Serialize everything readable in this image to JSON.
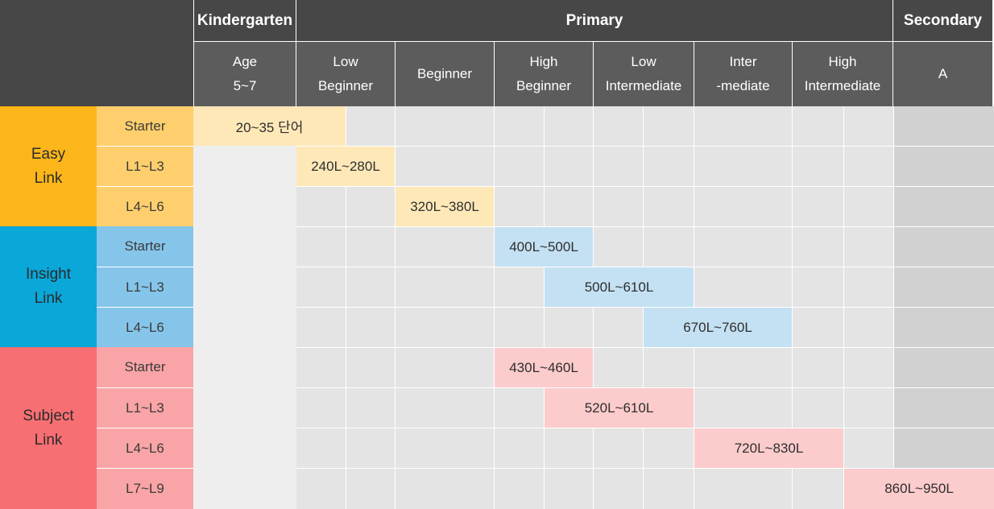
{
  "header": {
    "kindergarten": "Kindergarten",
    "primary": "Primary",
    "secondary": "Secondary",
    "columns": {
      "age_line1": "Age",
      "age_line2": "5~7",
      "low_beginner_line1": "Low",
      "low_beginner_line2": "Beginner",
      "beginner": "Beginner",
      "high_beginner_line1": "High",
      "high_beginner_line2": "Beginner",
      "low_intermediate_line1": "Low",
      "low_intermediate_line2": "Intermediate",
      "intermediate_line1": "Inter",
      "intermediate_line2": "-mediate",
      "high_intermediate_line1": "High",
      "high_intermediate_line2": "Intermediate",
      "secondary_a": "A"
    }
  },
  "programs": {
    "easy": {
      "line1": "Easy",
      "line2": "Link",
      "color": "#fdb61a",
      "level_color": "#ffcf6e",
      "range_color": "#ffe8b8"
    },
    "insight": {
      "line1": "Insight",
      "line2": "Link",
      "color": "#0aa7d9",
      "level_color": "#86c5ea",
      "range_color": "#c4e1f3"
    },
    "subject": {
      "line1": "Subject",
      "line2": "Link",
      "color": "#f86f73",
      "level_color": "#f9a4a6",
      "range_color": "#fccbcc"
    }
  },
  "rows": [
    {
      "level": "Starter",
      "range": "20~35 단어"
    },
    {
      "level": "L1~L3",
      "range": "240L~280L"
    },
    {
      "level": "L4~L6",
      "range": "320L~380L"
    },
    {
      "level": "Starter",
      "range": "400L~500L"
    },
    {
      "level": "L1~L3",
      "range": "500L~610L"
    },
    {
      "level": "L4~L6",
      "range": "670L~760L"
    },
    {
      "level": "Starter",
      "range": "430L~460L"
    },
    {
      "level": "L1~L3",
      "range": "520L~610L"
    },
    {
      "level": "L4~L6",
      "range": "720L~830L"
    },
    {
      "level": "L7~L9",
      "range": "860L~950L"
    }
  ]
}
